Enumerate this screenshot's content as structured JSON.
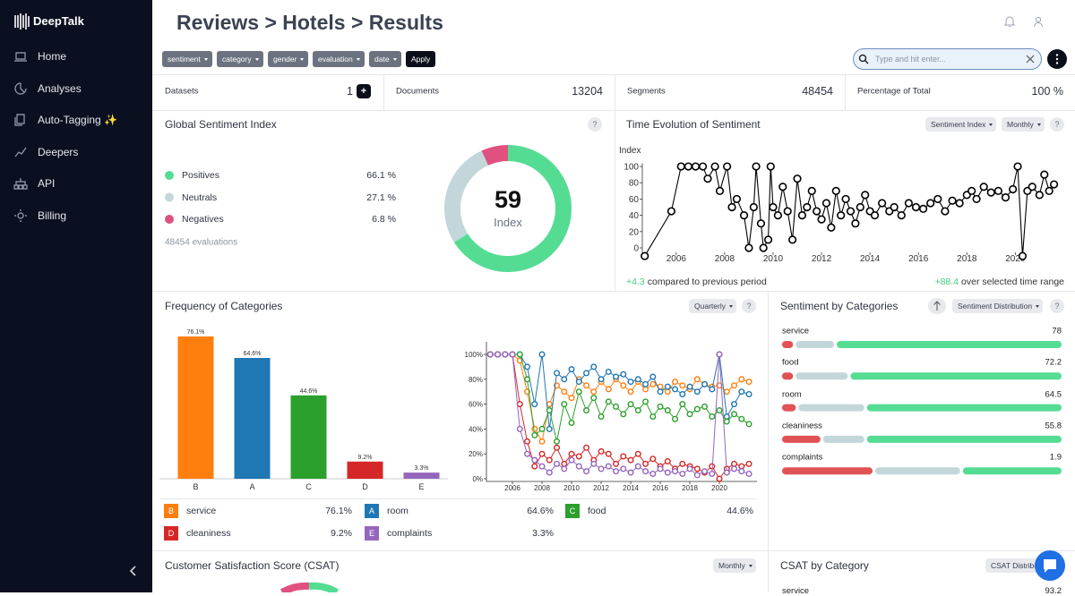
{
  "sidebar": {
    "brand": "DeepTalk",
    "nav": [
      "Home",
      "Analyses",
      "Auto-Tagging ✨",
      "Deepers",
      "API",
      "Billing"
    ]
  },
  "header": {
    "title": "Reviews > Hotels > Results",
    "filters": [
      "sentiment",
      "category",
      "gender",
      "evaluation",
      "date"
    ],
    "apply": "Apply",
    "search_placeholder": "Type and hit enter..."
  },
  "help": "?",
  "stats": [
    {
      "label": "Datasets",
      "value": 1,
      "action": "+"
    },
    {
      "label": "Documents",
      "value": 13204
    },
    {
      "label": "Segments",
      "value": 48454
    },
    {
      "label": "Percentage of Total",
      "value": "100 %"
    }
  ],
  "chart_data": [
    {
      "type": "donut",
      "title": "Global Sentiment Index",
      "categories": [
        "Positives",
        "Neutrals",
        "Negatives"
      ],
      "values": [
        66.1,
        27.1,
        6.8
      ],
      "value_labels": [
        "66.1 %",
        "27.1 %",
        "6.8 %"
      ],
      "colors": [
        "#55dc93",
        "#c3d7da",
        "#e0517f"
      ],
      "center_value": 59,
      "center_label": "Index",
      "footnote": "48454 evaluations"
    },
    {
      "type": "line",
      "title": "Time Evolution of Sentiment",
      "controls": [
        "Sentiment Index",
        "Monthly"
      ],
      "y_label": "Index",
      "color": "#000000",
      "x": [
        2004.7,
        2005.8,
        2006.2,
        2006.5,
        2006.8,
        2007.1,
        2007.3,
        2007.6,
        2007.8,
        2008.1,
        2008.3,
        2008.5,
        2008.8,
        2009.0,
        2009.2,
        2009.3,
        2009.5,
        2009.6,
        2009.8,
        2009.9,
        2010.0,
        2010.2,
        2010.4,
        2010.6,
        2010.8,
        2011.0,
        2011.2,
        2011.4,
        2011.6,
        2011.8,
        2012.0,
        2012.2,
        2012.4,
        2012.6,
        2012.8,
        2013.0,
        2013.2,
        2013.4,
        2013.6,
        2013.8,
        2014.0,
        2014.2,
        2014.5,
        2014.8,
        2015.0,
        2015.3,
        2015.6,
        2015.9,
        2016.2,
        2016.5,
        2016.8,
        2017.1,
        2017.4,
        2017.7,
        2018.0,
        2018.2,
        2018.4,
        2018.7,
        2019.0,
        2019.3,
        2019.6,
        2019.9,
        2020.1,
        2020.3,
        2020.5,
        2020.7,
        2021.0,
        2021.2,
        2021.4,
        2021.6
      ],
      "values": [
        -10,
        45,
        100,
        100,
        100,
        100,
        85,
        100,
        70,
        100,
        50,
        60,
        40,
        0,
        50,
        100,
        30,
        0,
        10,
        100,
        50,
        40,
        75,
        45,
        10,
        85,
        40,
        50,
        70,
        45,
        35,
        55,
        25,
        70,
        40,
        60,
        45,
        30,
        50,
        65,
        45,
        40,
        55,
        45,
        50,
        40,
        55,
        50,
        48,
        55,
        60,
        45,
        58,
        55,
        65,
        70,
        60,
        75,
        68,
        70,
        62,
        72,
        100,
        -10,
        70,
        75,
        65,
        90,
        70,
        78
      ],
      "xlim": [
        2004.6,
        2021.8
      ],
      "ylim": [
        -12,
        104
      ],
      "xticks": [
        2006,
        2008,
        2010,
        2012,
        2014,
        2016,
        2018,
        2020
      ],
      "yticks": [
        0,
        20,
        40,
        60,
        80,
        100
      ],
      "change_period": "+4.3",
      "change_period_text": "compared to previous period",
      "change_range": "+88.4",
      "change_range_text": "over selected time range"
    },
    {
      "type": "bar",
      "title": "Frequency of Categories",
      "controls": [
        "Quarterly"
      ],
      "categories": [
        "B",
        "A",
        "C",
        "D",
        "E"
      ],
      "values": [
        76.1,
        64.6,
        44.6,
        9.2,
        3.3
      ],
      "value_labels": [
        "76.1%",
        "64.6%",
        "44.6%",
        "9.2%",
        "3.3%"
      ],
      "colors": [
        "#ff7f0e",
        "#1f77b4",
        "#2ca02c",
        "#d62728",
        "#9467bd"
      ],
      "ylim": [
        0,
        100
      ]
    },
    {
      "type": "multiline",
      "x": [
        2004.5,
        2005,
        2005.5,
        2006,
        2006.5,
        2007,
        2007.5,
        2008,
        2008.5,
        2009,
        2009.5,
        2010,
        2010.5,
        2011,
        2011.5,
        2012,
        2012.5,
        2013,
        2013.5,
        2014,
        2014.5,
        2015,
        2015.5,
        2016,
        2016.5,
        2017,
        2017.5,
        2018,
        2018.5,
        2019,
        2019.5,
        2020,
        2020.5,
        2021,
        2021.5,
        2022
      ],
      "series": [
        {
          "name": "service",
          "color": "#ff7f0e",
          "values": [
            100,
            100,
            100,
            100,
            95,
            70,
            40,
            30,
            60,
            75,
            70,
            65,
            80,
            75,
            70,
            78,
            72,
            80,
            75,
            70,
            78,
            72,
            76,
            74,
            70,
            78,
            75,
            72,
            80,
            76,
            74,
            75,
            70,
            75,
            80,
            78
          ]
        },
        {
          "name": "room",
          "color": "#1f77b4",
          "values": [
            100,
            100,
            100,
            100,
            100,
            90,
            60,
            100,
            40,
            85,
            80,
            88,
            78,
            85,
            90,
            80,
            86,
            82,
            84,
            78,
            80,
            76,
            82,
            70,
            74,
            72,
            68,
            74,
            70,
            76,
            72,
            100,
            50,
            60,
            70,
            68
          ]
        },
        {
          "name": "food",
          "color": "#2ca02c",
          "values": [
            100,
            100,
            100,
            100,
            100,
            80,
            35,
            40,
            55,
            30,
            60,
            45,
            70,
            55,
            65,
            50,
            62,
            58,
            52,
            60,
            55,
            62,
            50,
            58,
            55,
            48,
            60,
            52,
            56,
            58,
            50,
            55,
            46,
            52,
            48,
            44
          ]
        },
        {
          "name": "cleaniness",
          "color": "#d62728",
          "values": [
            100,
            100,
            100,
            100,
            60,
            30,
            10,
            20,
            15,
            25,
            12,
            20,
            18,
            25,
            15,
            22,
            20,
            12,
            18,
            15,
            20,
            12,
            16,
            10,
            14,
            8,
            12,
            10,
            8,
            5,
            10,
            0,
            8,
            12,
            10,
            12
          ]
        },
        {
          "name": "complaints",
          "color": "#9467bd",
          "values": [
            100,
            100,
            100,
            100,
            40,
            20,
            15,
            10,
            5,
            12,
            8,
            15,
            10,
            6,
            12,
            8,
            10,
            6,
            8,
            5,
            10,
            6,
            4,
            8,
            5,
            6,
            4,
            8,
            3,
            6,
            4,
            100,
            5,
            8,
            6,
            4
          ]
        }
      ],
      "xlim": [
        2004.3,
        2022.3
      ],
      "ylim": [
        0,
        100
      ],
      "xticks": [
        2006,
        2008,
        2010,
        2012,
        2014,
        2016,
        2018,
        2020
      ],
      "yticks": [
        {
          "value": 0,
          "label": "0%"
        },
        {
          "value": 20,
          "label": "20%"
        },
        {
          "value": 40,
          "label": "40%"
        },
        {
          "value": 60,
          "label": "60%"
        },
        {
          "value": 80,
          "label": "80%"
        },
        {
          "value": 100,
          "label": "100%"
        }
      ]
    },
    {
      "type": "stacked-bar",
      "title": "Sentiment by Categories",
      "controls": [
        "Sentiment Distribution"
      ],
      "categories": [
        "service",
        "food",
        "room",
        "cleaniness",
        "complaints"
      ],
      "scores": [
        78,
        72.2,
        64.5,
        55.8,
        1.9
      ],
      "xlim": [
        0,
        100
      ],
      "series": [
        {
          "color": "#e05254",
          "values": [
            4,
            4,
            5,
            14,
            33
          ]
        },
        {
          "color": "#c3d7da",
          "values": [
            14,
            19,
            24,
            15,
            31
          ]
        },
        {
          "color": "#55dc93",
          "values": [
            82,
            77,
            71,
            71,
            36
          ]
        }
      ]
    }
  ],
  "csat": {
    "title": "Customer Satisfaction Score (CSAT)",
    "dropdown": "Monthly"
  },
  "csat_by_category": {
    "title": "CSAT by Category",
    "dropdown": "CSAT Distribution",
    "first_row": {
      "name": "service",
      "value": 93.2
    }
  }
}
